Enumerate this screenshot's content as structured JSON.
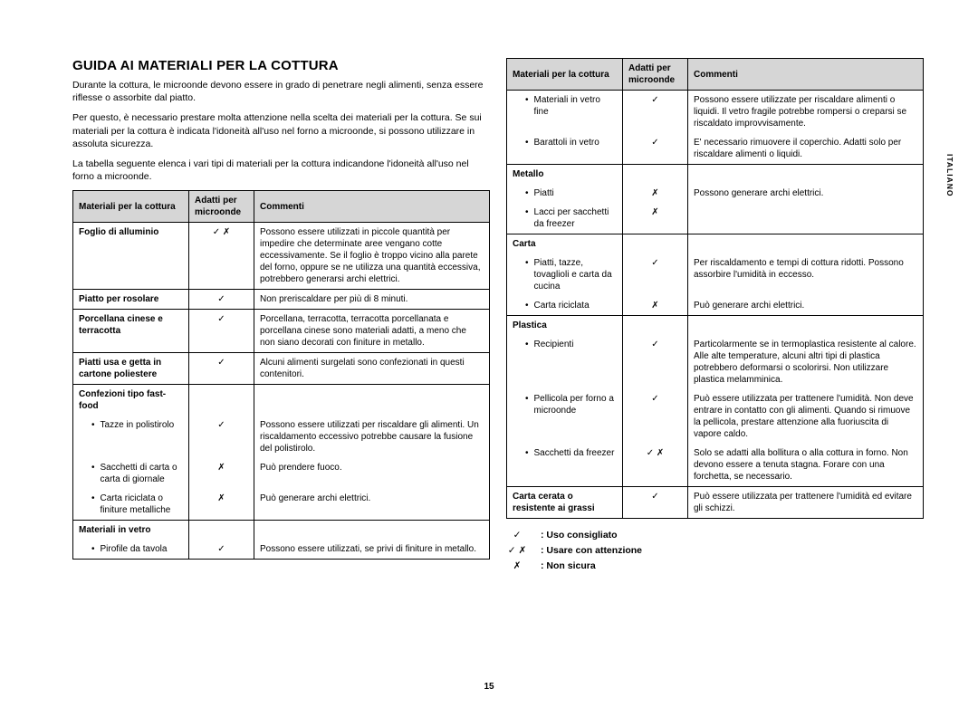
{
  "title": "GUIDA AI MATERIALI PER LA COTTURA",
  "intro": [
    "Durante la cottura, le microonde devono essere in grado di penetrare negli alimenti, senza essere riflesse o assorbite dal piatto.",
    "Per questo, è necessario prestare molta attenzione nella scelta dei materiali per la cottura. Se sui materiali per la cottura è indicata l'idoneità all'uso nel forno a microonde, si possono utilizzare in assoluta sicurezza.",
    "La tabella seguente elenca i vari tipi di materiali per la cottura indicandone l'idoneità all'uso nel forno a microonde."
  ],
  "headers": {
    "col1": "Materiali per la cottura",
    "col2": "Adatti per microonde",
    "col3": "Commenti"
  },
  "symbols": {
    "yes": "✓",
    "no": "✗",
    "caution": "✓ ✗"
  },
  "left_rows": [
    {
      "div": true,
      "name": "Foglio di alluminio",
      "bold": true,
      "bullet": false,
      "sym": "caution",
      "comment": "Possono essere utilizzati in piccole quantità per impedire che determinate aree vengano cotte eccessivamente. Se il foglio è troppo vicino alla parete del forno, oppure se ne utilizza una quantità eccessiva, potrebbero generarsi archi elettrici."
    },
    {
      "div": true,
      "name": "Piatto per rosolare",
      "bold": true,
      "bullet": false,
      "sym": "yes",
      "comment": "Non preriscaldare per più di 8 minuti."
    },
    {
      "div": true,
      "name": "Porcellana cinese e terracotta",
      "bold": true,
      "bullet": false,
      "sym": "yes",
      "comment": "Porcellana, terracotta, terracotta porcellanata e porcellana cinese sono materiali adatti, a meno che non siano decorati con finiture in metallo."
    },
    {
      "div": true,
      "name": "Piatti usa e getta in cartone poliestere",
      "bold": true,
      "bullet": false,
      "sym": "yes",
      "comment": "Alcuni alimenti surgelati sono confezionati in questi contenitori."
    },
    {
      "div": true,
      "name": "Confezioni tipo fast-food",
      "bold": true,
      "bullet": false,
      "sym": "",
      "comment": ""
    },
    {
      "div": false,
      "name": "Tazze in polistirolo",
      "bold": false,
      "bullet": true,
      "sym": "yes",
      "comment": "Possono essere utilizzati per riscaldare gli alimenti. Un riscaldamento eccessivo potrebbe causare la fusione del polistirolo."
    },
    {
      "div": false,
      "name": "Sacchetti di carta o carta di giornale",
      "bold": false,
      "bullet": true,
      "sym": "no",
      "comment": "Può prendere fuoco."
    },
    {
      "div": false,
      "name": "Carta riciclata o finiture metalliche",
      "bold": false,
      "bullet": true,
      "sym": "no",
      "comment": "Può generare archi elettrici."
    },
    {
      "div": true,
      "name": "Materiali in vetro",
      "bold": true,
      "bullet": false,
      "sym": "",
      "comment": ""
    },
    {
      "div": false,
      "last": true,
      "name": "Pirofile da tavola",
      "bold": false,
      "bullet": true,
      "sym": "yes",
      "comment": "Possono essere utilizzati, se privi di finiture in metallo."
    }
  ],
  "right_rows": [
    {
      "div": true,
      "name": "Materiali in vetro fine",
      "bold": false,
      "bullet": true,
      "sym": "yes",
      "comment": "Possono essere utilizzate per riscaldare alimenti o liquidi. Il vetro fragile potrebbe rompersi o creparsi se riscaldato improvvisamente."
    },
    {
      "div": false,
      "name": "Barattoli in vetro",
      "bold": false,
      "bullet": true,
      "sym": "yes",
      "comment": "E' necessario rimuovere il coperchio. Adatti solo per riscaldare alimenti o liquidi."
    },
    {
      "div": true,
      "name": "Metallo",
      "bold": true,
      "bullet": false,
      "sym": "",
      "comment": ""
    },
    {
      "div": false,
      "name": "Piatti",
      "bold": false,
      "bullet": true,
      "sym": "no",
      "comment": "Possono generare archi elettrici."
    },
    {
      "div": false,
      "name": "Lacci per sacchetti da freezer",
      "bold": false,
      "bullet": true,
      "sym": "no",
      "comment": ""
    },
    {
      "div": true,
      "name": "Carta",
      "bold": true,
      "bullet": false,
      "sym": "",
      "comment": ""
    },
    {
      "div": false,
      "name": "Piatti, tazze, tovaglioli e carta da cucina",
      "bold": false,
      "bullet": true,
      "sym": "yes",
      "comment": "Per riscaldamento e tempi di cottura ridotti. Possono assorbire l'umidità in eccesso."
    },
    {
      "div": false,
      "name": "Carta riciclata",
      "bold": false,
      "bullet": true,
      "sym": "no",
      "comment": "Può generare archi elettrici."
    },
    {
      "div": true,
      "name": "Plastica",
      "bold": true,
      "bullet": false,
      "sym": "",
      "comment": ""
    },
    {
      "div": false,
      "name": "Recipienti",
      "bold": false,
      "bullet": true,
      "sym": "yes",
      "comment": "Particolarmente se in termoplastica resistente al calore. Alle alte temperature, alcuni altri tipi di plastica potrebbero deformarsi o scolorirsi. Non utilizzare plastica melamminica."
    },
    {
      "div": false,
      "name": "Pellicola per forno a microonde",
      "bold": false,
      "bullet": true,
      "sym": "yes",
      "comment": "Può essere utilizzata per trattenere l'umidità. Non deve entrare in contatto con gli alimenti. Quando si rimuove la pellicola, prestare attenzione alla fuoriuscita di vapore caldo."
    },
    {
      "div": false,
      "name": "Sacchetti da freezer",
      "bold": false,
      "bullet": true,
      "sym": "caution",
      "comment": "Solo se adatti alla bollitura o alla cottura in forno. Non devono essere a tenuta stagna. Forare con una forchetta, se necessario."
    },
    {
      "div": true,
      "last": true,
      "name": "Carta cerata o resistente ai grassi",
      "bold": true,
      "bullet": false,
      "sym": "yes",
      "comment": "Può essere utilizzata per trattenere l'umidità ed evitare gli schizzi."
    }
  ],
  "legend": [
    {
      "sym": "yes",
      "text": ": Uso consigliato"
    },
    {
      "sym": "caution",
      "text": ": Usare con attenzione"
    },
    {
      "sym": "no",
      "text": ": Non sicura"
    }
  ],
  "sidetab": "ITALIANO",
  "pagenum": "15"
}
